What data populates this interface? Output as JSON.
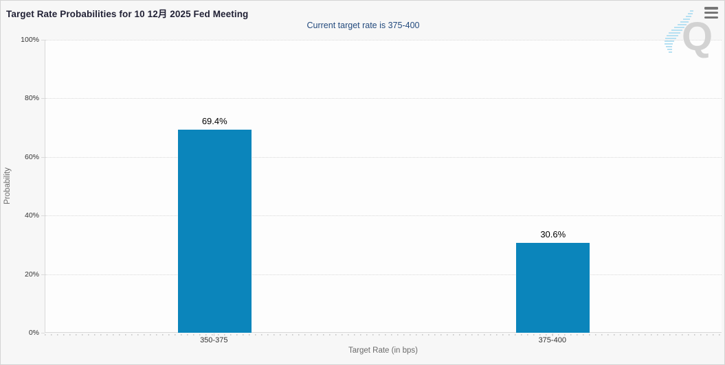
{
  "header": {
    "title": "Target Rate Probabilities for 10 12月 2025 Fed Meeting",
    "subtitle": "Current target rate is 375-400",
    "menu_icon": "hamburger-icon"
  },
  "watermark": {
    "letter": "Q"
  },
  "colors": {
    "bar": "#0b85bb",
    "subtitle_text": "#234a7d",
    "title_text": "#212135",
    "grid": "#d8d8d8",
    "background": "#f7f7f7",
    "plot_background": "#fdfdfd",
    "watermark_letter": "#d2d2d2",
    "watermark_accent": "#b6e0f2"
  },
  "chart_data": {
    "type": "bar",
    "title": "Target Rate Probabilities for 10 12月 2025 Fed Meeting",
    "subtitle": "Current target rate is 375-400",
    "categories": [
      "350-375",
      "375-400"
    ],
    "values": [
      69.4,
      30.6
    ],
    "value_labels": [
      "69.4%",
      "30.6%"
    ],
    "xlabel": "Target Rate (in bps)",
    "ylabel": "Probability",
    "ylim": [
      0,
      100
    ],
    "ytick_step": 20,
    "ytick_labels": [
      "0%",
      "20%",
      "40%",
      "60%",
      "80%",
      "100%"
    ],
    "grid": "dotted-horizontal",
    "legend": "none"
  }
}
